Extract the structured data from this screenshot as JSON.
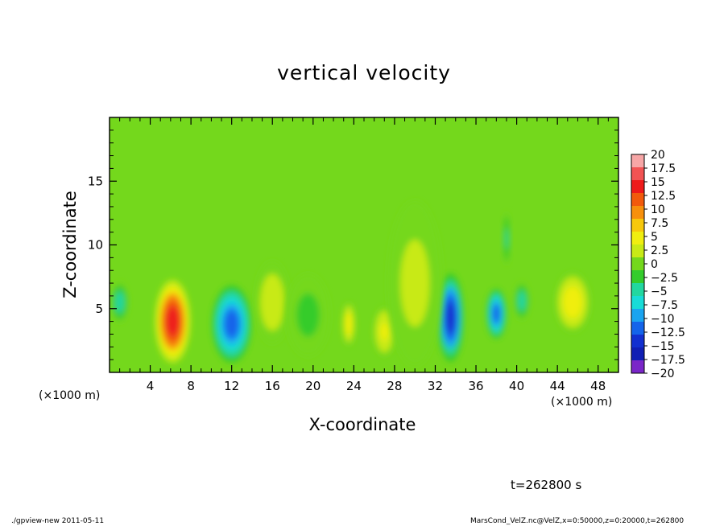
{
  "chart_data": {
    "type": "heatmap",
    "title": "vertical velocity",
    "xlabel": "X-coordinate",
    "ylabel": "Z-coordinate",
    "x_unit": "(×1000 m)",
    "y_unit": "(×1000 m)",
    "x_ticks": [
      "4",
      "8",
      "12",
      "16",
      "20",
      "24",
      "28",
      "32",
      "36",
      "40",
      "44",
      "48"
    ],
    "y_ticks": [
      "5",
      "10",
      "15"
    ],
    "xlim": [
      0,
      50
    ],
    "ylim": [
      0,
      20
    ],
    "colorbar": {
      "labels": [
        "20",
        "17.5",
        "15",
        "12.5",
        "10",
        "7.5",
        "5",
        "2.5",
        "0",
        "−2.5",
        "−5",
        "−7.5",
        "−10",
        "−12.5",
        "−15",
        "−17.5",
        "−20"
      ],
      "colors": [
        "#f7a6a6",
        "#f25353",
        "#ee1a1a",
        "#f25a0c",
        "#f7900c",
        "#f7c80c",
        "#f0ee10",
        "#c8ea16",
        "#74d81c",
        "#34cc2c",
        "#22d7a0",
        "#18dcd7",
        "#1aa4f0",
        "#1464ea",
        "#1230d0",
        "#101fb4",
        "#7a26c8"
      ]
    },
    "features": [
      {
        "x": 6.2,
        "z": 4.0,
        "value": 15,
        "rx": 1.6,
        "rz": 3.0
      },
      {
        "x": 12.0,
        "z": 3.8,
        "value": -12,
        "rx": 1.8,
        "rz": 2.8
      },
      {
        "x": 33.5,
        "z": 4.3,
        "value": -15,
        "rx": 1.2,
        "rz": 3.2
      },
      {
        "x": 38.0,
        "z": 4.6,
        "value": -13,
        "rx": 0.9,
        "rz": 1.8
      },
      {
        "x": 45.5,
        "z": 5.5,
        "value": 6,
        "rx": 1.6,
        "rz": 2.2
      },
      {
        "x": 23.5,
        "z": 3.8,
        "value": 6,
        "rx": 0.6,
        "rz": 1.6
      },
      {
        "x": 27.0,
        "z": 3.2,
        "value": 4,
        "rx": 1.0,
        "rz": 1.8
      },
      {
        "x": 1.0,
        "z": 5.5,
        "value": -6,
        "rx": 0.8,
        "rz": 1.5
      },
      {
        "x": 40.5,
        "z": 5.6,
        "value": -6,
        "rx": 0.7,
        "rz": 1.4
      },
      {
        "x": 16.0,
        "z": 5.5,
        "value": 3,
        "rx": 1.6,
        "rz": 3.0
      },
      {
        "x": 19.5,
        "z": 4.5,
        "value": -2,
        "rx": 2.0,
        "rz": 3.0
      },
      {
        "x": 30.0,
        "z": 7.0,
        "value": 2,
        "rx": 2.5,
        "rz": 6.0
      },
      {
        "x": 39.0,
        "z": 10.5,
        "value": -4,
        "rx": 0.3,
        "rz": 2.0
      }
    ]
  },
  "time_label": "t=262800  s",
  "footer_left": "./gpview-new   2011-05-11",
  "footer_right": "MarsCond_VelZ.nc@VelZ,x=0:50000,z=0:20000,t=262800"
}
